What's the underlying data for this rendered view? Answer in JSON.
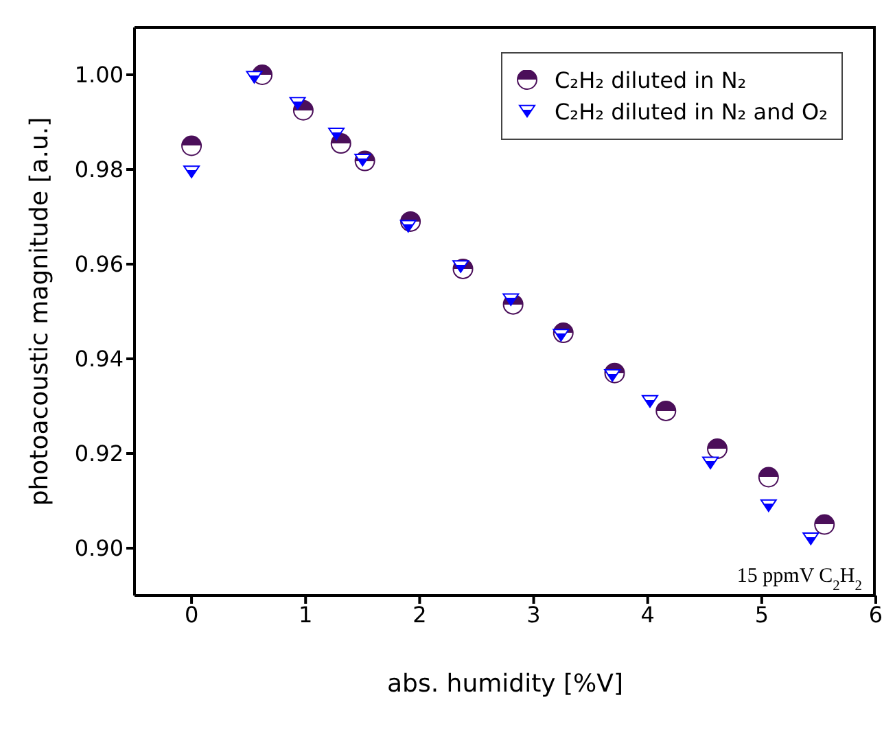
{
  "chart_data": {
    "type": "scatter",
    "xlabel": "abs. humidity [%V]",
    "ylabel": "photoacoustic magnitude [a.u.]",
    "annotations": [
      "15 ppmV C$_{2}$H$_{2}$"
    ],
    "xlim": [
      -0.5,
      6
    ],
    "xticks": [
      0,
      1,
      2,
      3,
      4,
      5,
      6
    ],
    "ylim": [
      0.89,
      1.01
    ],
    "yticks": [
      {
        "value": 0.9,
        "label": "0.90"
      },
      {
        "value": 0.92,
        "label": "0.92"
      },
      {
        "value": 0.94,
        "label": "0.94"
      },
      {
        "value": 0.96,
        "label": "0.96"
      },
      {
        "value": 0.98,
        "label": "0.98"
      },
      {
        "value": 1.0,
        "label": "1.00"
      }
    ],
    "grid": false,
    "legend": "top right",
    "series": [
      {
        "name": "C₂H₂ diluted in N₂",
        "color": "#4b0f5a",
        "marker": "circle",
        "x": [
          0,
          0.62,
          0.98,
          1.31,
          1.52,
          1.92,
          2.38,
          2.82,
          3.26,
          3.71,
          4.16,
          4.61,
          5.06,
          5.55
        ],
        "values": [
          0.985,
          1.0,
          0.9925,
          0.9855,
          0.9818,
          0.969,
          0.959,
          0.9515,
          0.9455,
          0.937,
          0.929,
          0.921,
          0.915,
          0.905
        ]
      },
      {
        "name": "C₂H₂ diluted in N₂ and O₂",
        "color": "#0000ff",
        "marker": "triangle",
        "x": [
          0,
          0.55,
          0.93,
          1.27,
          1.5,
          1.9,
          2.36,
          2.8,
          3.24,
          3.69,
          4.02,
          4.55,
          5.06,
          5.43
        ],
        "values": [
          0.9795,
          0.9995,
          0.994,
          0.9875,
          0.982,
          0.968,
          0.9595,
          0.9525,
          0.945,
          0.9365,
          0.931,
          0.918,
          0.909,
          0.902
        ]
      }
    ]
  }
}
